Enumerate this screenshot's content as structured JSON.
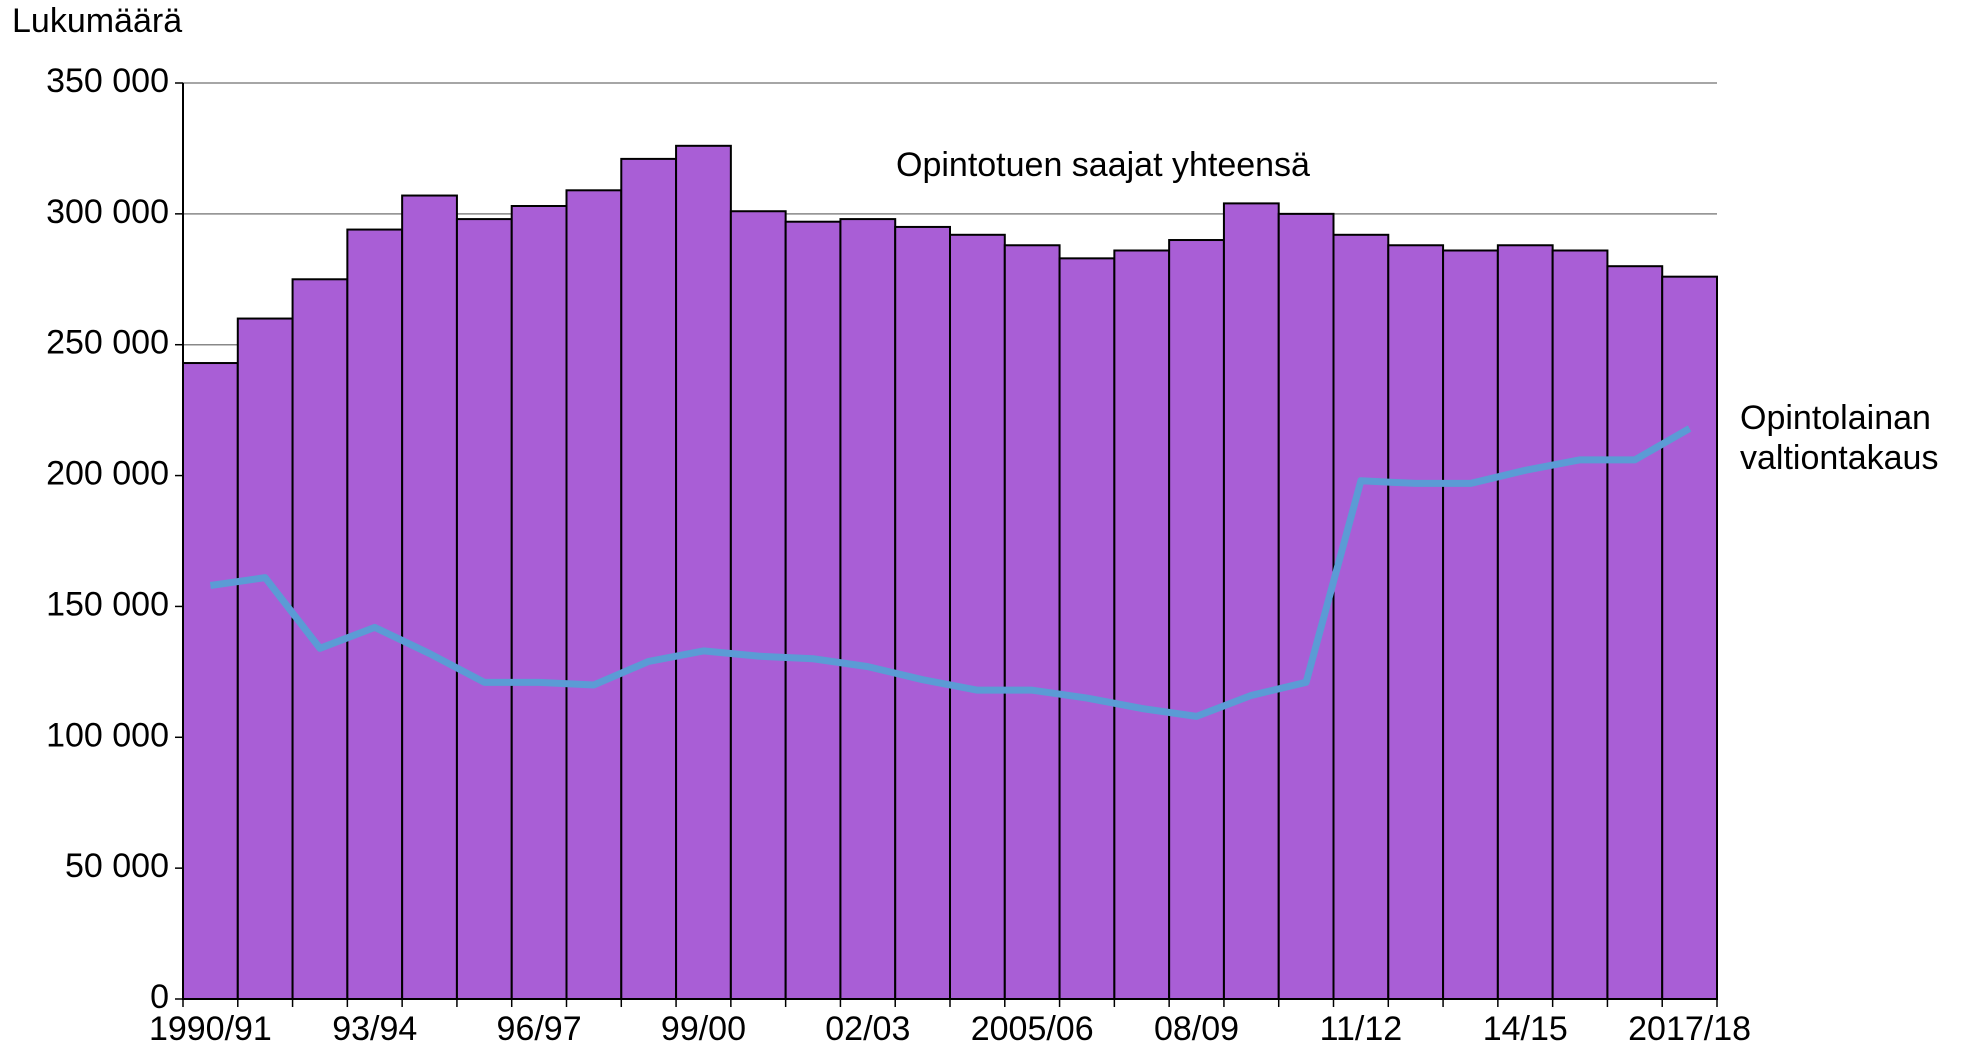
{
  "chart_data": {
    "type": "bar_line",
    "y_label": "Lukumäärä",
    "categories": [
      "1990/91",
      null,
      null,
      "93/94",
      null,
      null,
      "96/97",
      null,
      null,
      "99/00",
      null,
      null,
      "02/03",
      null,
      null,
      "2005/06",
      null,
      null,
      "08/09",
      null,
      null,
      "11/12",
      null,
      null,
      "14/15",
      null,
      null,
      "2017/18"
    ],
    "series": [
      {
        "name": "Opintotuen saajat yhteensä",
        "type": "bar",
        "color": "#a95ed6",
        "values": [
          243000,
          260000,
          275000,
          294000,
          307000,
          298000,
          303000,
          309000,
          321000,
          326000,
          301000,
          297000,
          298000,
          295000,
          292000,
          288000,
          283000,
          286000,
          290000,
          304000,
          300000,
          292000,
          288000,
          286000,
          288000,
          286000,
          280000,
          276000
        ]
      },
      {
        "name": "Opintolainan valtiontakaus",
        "type": "line",
        "color": "#5b9bd5",
        "values": [
          158000,
          161000,
          134000,
          142000,
          132000,
          121000,
          121000,
          120000,
          129000,
          133000,
          131000,
          130000,
          127000,
          122000,
          118000,
          118000,
          115000,
          111000,
          108000,
          116000,
          121000,
          198000,
          197000,
          197000,
          202000,
          206000,
          206000,
          218000
        ]
      }
    ],
    "ylim": [
      0,
      350000
    ],
    "yticks": [
      0,
      {
        "value": 50000,
        "label": "50 000"
      },
      {
        "value": 100000,
        "label": "100 000"
      },
      {
        "value": 150000,
        "label": "150 000"
      },
      {
        "value": 200000,
        "label": "200 000"
      },
      {
        "value": 250000,
        "label": "250 000"
      },
      {
        "value": 300000,
        "label": "300 000"
      },
      {
        "value": 350000,
        "label": "350 000"
      }
    ],
    "grid": true
  }
}
